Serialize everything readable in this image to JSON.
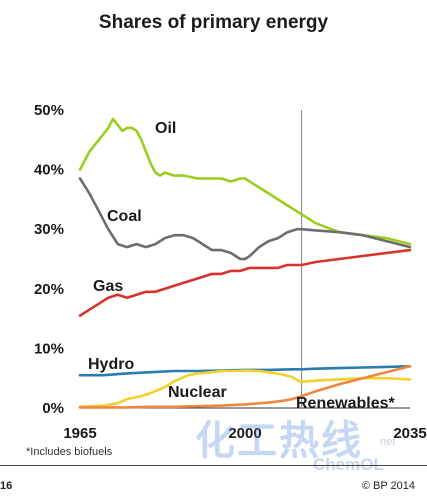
{
  "header": {
    "title": "Shares of primary energy"
  },
  "chart_data": {
    "type": "line",
    "title": "Shares of primary energy",
    "xlabel": "",
    "ylabel": "",
    "xlim": [
      1965,
      2035
    ],
    "ylim": [
      0,
      50
    ],
    "x_ticks": [
      "1965",
      "2000",
      "2035"
    ],
    "y_ticks": [
      "0%",
      "10%",
      "20%",
      "30%",
      "40%",
      "50%"
    ],
    "divider_year": 2012,
    "grid": false,
    "series": [
      {
        "name": "Oil",
        "color": "#9ccc1c",
        "x": [
          1965,
          1967,
          1969,
          1971,
          1972,
          1973,
          1974,
          1975,
          1976,
          1977,
          1978,
          1979,
          1980,
          1981,
          1982,
          1983,
          1985,
          1987,
          1990,
          1993,
          1995,
          1997,
          1999,
          2000,
          2001,
          2003,
          2005,
          2007,
          2009,
          2011,
          2012,
          2015,
          2020,
          2025,
          2030,
          2035
        ],
        "values": [
          40,
          43,
          45,
          47,
          48.5,
          47.5,
          46.5,
          47,
          47,
          46.5,
          45,
          43,
          41,
          39.5,
          39,
          39.5,
          39,
          39,
          38.5,
          38.5,
          38.5,
          38,
          38.5,
          38.5,
          38,
          37,
          36,
          35,
          34,
          33,
          32.5,
          31,
          29.5,
          29,
          28.5,
          27.5
        ]
      },
      {
        "name": "Coal",
        "color": "#6d6d6d",
        "x": [
          1965,
          1967,
          1969,
          1971,
          1973,
          1975,
          1977,
          1979,
          1981,
          1983,
          1985,
          1987,
          1989,
          1991,
          1993,
          1995,
          1997,
          1999,
          2000,
          2001,
          2003,
          2005,
          2007,
          2009,
          2011,
          2012,
          2015,
          2020,
          2025,
          2030,
          2035
        ],
        "values": [
          38.5,
          36,
          33,
          30,
          27.5,
          27,
          27.5,
          27,
          27.5,
          28.5,
          29,
          29,
          28.5,
          27.5,
          26.5,
          26.5,
          26,
          25,
          25,
          25.5,
          27,
          28,
          28.5,
          29.5,
          30,
          30,
          29.8,
          29.5,
          29,
          28,
          27
        ]
      },
      {
        "name": "Gas",
        "color": "#d7322c",
        "x": [
          1965,
          1967,
          1969,
          1971,
          1973,
          1975,
          1977,
          1979,
          1981,
          1983,
          1985,
          1987,
          1989,
          1991,
          1993,
          1995,
          1997,
          1999,
          2001,
          2003,
          2005,
          2007,
          2009,
          2011,
          2012,
          2015,
          2020,
          2025,
          2030,
          2035
        ],
        "values": [
          15.5,
          16.5,
          17.5,
          18.5,
          19,
          18.5,
          19,
          19.5,
          19.5,
          20,
          20.5,
          21,
          21.5,
          22,
          22.5,
          22.5,
          23,
          23,
          23.5,
          23.5,
          23.5,
          23.5,
          24,
          24,
          24,
          24.5,
          25,
          25.5,
          26,
          26.5
        ]
      },
      {
        "name": "Hydro",
        "color": "#2b7bb0",
        "x": [
          1965,
          1970,
          1975,
          1980,
          1985,
          1990,
          1995,
          2000,
          2005,
          2010,
          2012,
          2015,
          2020,
          2025,
          2030,
          2035
        ],
        "values": [
          5.5,
          5.5,
          5.8,
          6,
          6.2,
          6.2,
          6.3,
          6.4,
          6.4,
          6.5,
          6.5,
          6.6,
          6.7,
          6.8,
          6.9,
          7
        ]
      },
      {
        "name": "Nuclear",
        "color": "#f2d22a",
        "x": [
          1965,
          1970,
          1973,
          1975,
          1978,
          1980,
          1983,
          1985,
          1988,
          1990,
          1993,
          1995,
          1998,
          2000,
          2003,
          2005,
          2008,
          2010,
          2011,
          2012,
          2015,
          2020,
          2025,
          2030,
          2035
        ],
        "values": [
          0.2,
          0.4,
          0.8,
          1.5,
          2,
          2.5,
          3.5,
          4.5,
          5.5,
          5.8,
          6,
          6.2,
          6.2,
          6.3,
          6.2,
          6,
          5.6,
          5.2,
          4.7,
          4.4,
          4.6,
          4.8,
          5,
          5,
          4.8
        ]
      },
      {
        "name": "Renewables*",
        "color": "#ee8640",
        "x": [
          1965,
          1970,
          1975,
          1980,
          1985,
          1990,
          1995,
          2000,
          2005,
          2008,
          2010,
          2012,
          2015,
          2020,
          2025,
          2030,
          2035
        ],
        "values": [
          0.1,
          0.1,
          0.1,
          0.2,
          0.2,
          0.3,
          0.4,
          0.6,
          0.9,
          1.2,
          1.5,
          2,
          2.8,
          4,
          5,
          6,
          7
        ]
      }
    ]
  },
  "footnote": "*Includes biofuels",
  "footer": {
    "page": "16",
    "copyright": "© BP 2014"
  },
  "watermark": {
    "text": "化工热线",
    "sub": "ChemOL",
    "net": "net"
  }
}
